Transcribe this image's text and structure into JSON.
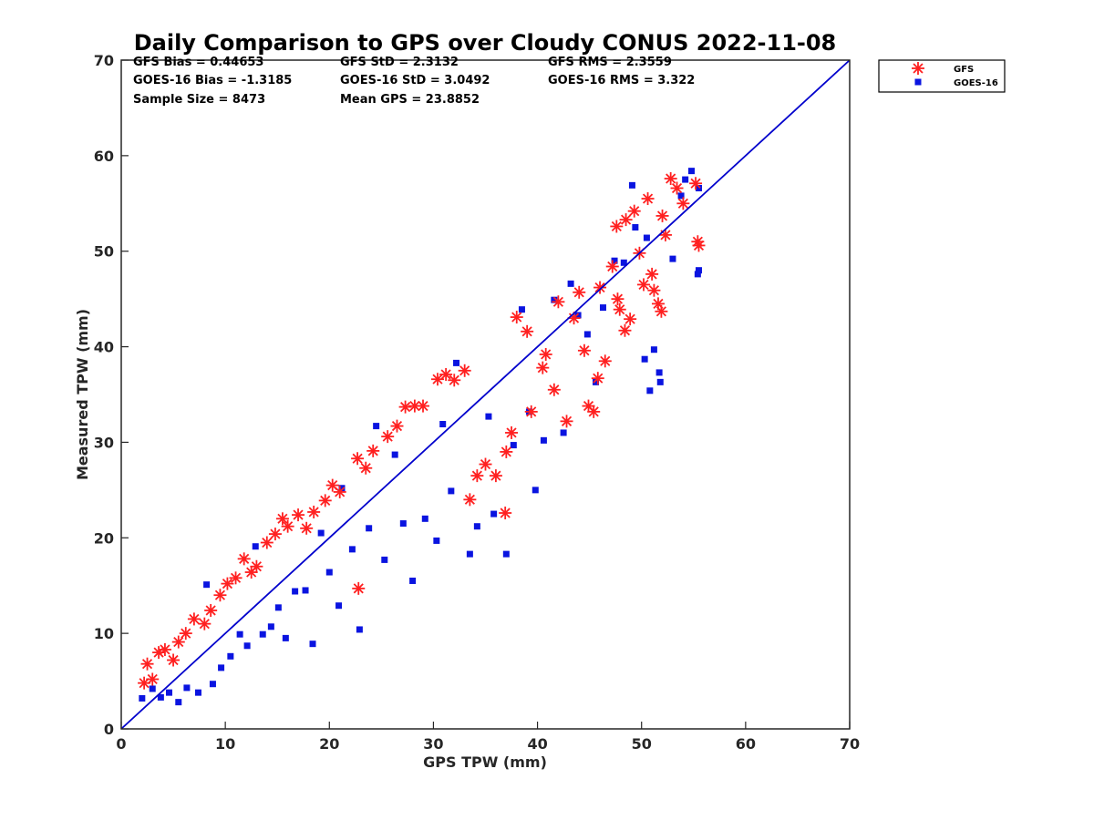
{
  "chart_data": {
    "type": "scatter",
    "title": "Daily Comparison to GPS over Cloudy CONUS 2022-11-08",
    "xlabel": "GPS TPW (mm)",
    "ylabel": "Measured TPW (mm)",
    "xlim": [
      0,
      70
    ],
    "ylim": [
      0,
      70
    ],
    "xticks": [
      "0",
      "10",
      "20",
      "30",
      "40",
      "50",
      "60",
      "70"
    ],
    "yticks": [
      "0",
      "10",
      "20",
      "30",
      "40",
      "50",
      "60",
      "70"
    ],
    "grid": false,
    "legend_position": "outside-top-right",
    "stats": [
      [
        "GFS Bias = 0.44653",
        "GFS StD = 2.3132",
        "GFS RMS = 2.3559"
      ],
      [
        "GOES-16 Bias = -1.3185",
        "GOES-16 StD = 3.0492",
        "GOES-16 RMS = 3.322"
      ],
      [
        "Sample Size = 8473",
        "Mean GPS = 23.8852",
        ""
      ]
    ],
    "reference_line": {
      "x": [
        0,
        70
      ],
      "y": [
        0,
        70
      ],
      "color": "#0000cc"
    },
    "series": [
      {
        "name": "GFS",
        "marker": "asterisk",
        "color": "#ff2020",
        "points": [
          [
            2.2,
            4.8
          ],
          [
            2.5,
            6.8
          ],
          [
            3.0,
            5.2
          ],
          [
            3.6,
            8.0
          ],
          [
            4.2,
            8.3
          ],
          [
            5.0,
            7.2
          ],
          [
            5.5,
            9.1
          ],
          [
            6.2,
            10.0
          ],
          [
            7.0,
            11.5
          ],
          [
            8.0,
            11.0
          ],
          [
            8.6,
            12.4
          ],
          [
            9.5,
            14.0
          ],
          [
            10.2,
            15.2
          ],
          [
            11.0,
            15.8
          ],
          [
            11.8,
            17.8
          ],
          [
            12.5,
            16.4
          ],
          [
            13.0,
            17.0
          ],
          [
            14.0,
            19.5
          ],
          [
            14.8,
            20.4
          ],
          [
            15.5,
            22.0
          ],
          [
            16.0,
            21.2
          ],
          [
            17.0,
            22.4
          ],
          [
            17.8,
            21.0
          ],
          [
            18.5,
            22.7
          ],
          [
            19.6,
            23.9
          ],
          [
            20.3,
            25.5
          ],
          [
            21.0,
            24.8
          ],
          [
            22.7,
            28.3
          ],
          [
            23.5,
            27.3
          ],
          [
            24.2,
            29.1
          ],
          [
            22.8,
            14.7
          ],
          [
            25.6,
            30.6
          ],
          [
            26.5,
            31.7
          ],
          [
            27.3,
            33.7
          ],
          [
            28.2,
            33.8
          ],
          [
            29.0,
            33.8
          ],
          [
            30.4,
            36.6
          ],
          [
            31.2,
            37.1
          ],
          [
            32.0,
            36.5
          ],
          [
            33.0,
            37.5
          ],
          [
            33.5,
            24.0
          ],
          [
            34.2,
            26.5
          ],
          [
            35.0,
            27.7
          ],
          [
            36.0,
            26.5
          ],
          [
            36.9,
            22.6
          ],
          [
            37.0,
            29.0
          ],
          [
            37.5,
            31.0
          ],
          [
            38.0,
            43.1
          ],
          [
            39.0,
            41.6
          ],
          [
            39.4,
            33.2
          ],
          [
            40.5,
            37.8
          ],
          [
            40.8,
            39.2
          ],
          [
            41.6,
            35.5
          ],
          [
            42.0,
            44.7
          ],
          [
            42.8,
            32.2
          ],
          [
            43.5,
            43.0
          ],
          [
            44.0,
            45.7
          ],
          [
            44.5,
            39.6
          ],
          [
            44.9,
            33.8
          ],
          [
            45.4,
            33.2
          ],
          [
            45.8,
            36.7
          ],
          [
            46.0,
            46.2
          ],
          [
            46.5,
            38.5
          ],
          [
            47.2,
            48.4
          ],
          [
            47.7,
            45.0
          ],
          [
            47.9,
            43.9
          ],
          [
            48.4,
            41.7
          ],
          [
            48.9,
            42.9
          ],
          [
            47.6,
            52.6
          ],
          [
            48.5,
            53.3
          ],
          [
            49.3,
            54.2
          ],
          [
            49.8,
            49.8
          ],
          [
            50.2,
            46.5
          ],
          [
            50.6,
            55.5
          ],
          [
            51.0,
            47.6
          ],
          [
            51.2,
            45.9
          ],
          [
            51.6,
            44.5
          ],
          [
            51.9,
            43.7
          ],
          [
            52.3,
            51.7
          ],
          [
            52.8,
            57.6
          ],
          [
            53.4,
            56.6
          ],
          [
            54.0,
            55.0
          ],
          [
            55.2,
            57.1
          ],
          [
            55.4,
            51.0
          ],
          [
            55.5,
            50.6
          ],
          [
            52.0,
            53.7
          ]
        ]
      },
      {
        "name": "GOES-16",
        "marker": "square",
        "color": "#0a14e0",
        "points": [
          [
            2.0,
            3.2
          ],
          [
            3.0,
            4.2
          ],
          [
            3.8,
            3.3
          ],
          [
            4.6,
            3.8
          ],
          [
            5.5,
            2.8
          ],
          [
            6.3,
            4.3
          ],
          [
            7.4,
            3.8
          ],
          [
            8.2,
            15.1
          ],
          [
            8.8,
            4.7
          ],
          [
            9.6,
            6.4
          ],
          [
            10.5,
            7.6
          ],
          [
            11.4,
            9.9
          ],
          [
            12.1,
            8.7
          ],
          [
            12.9,
            19.1
          ],
          [
            13.6,
            9.9
          ],
          [
            14.4,
            10.7
          ],
          [
            15.1,
            12.7
          ],
          [
            15.8,
            9.5
          ],
          [
            16.7,
            14.4
          ],
          [
            17.7,
            14.5
          ],
          [
            18.4,
            8.9
          ],
          [
            19.2,
            20.5
          ],
          [
            20.0,
            16.4
          ],
          [
            20.9,
            12.9
          ],
          [
            21.2,
            25.2
          ],
          [
            22.2,
            18.8
          ],
          [
            22.9,
            10.4
          ],
          [
            23.8,
            21.0
          ],
          [
            24.5,
            31.7
          ],
          [
            25.3,
            17.7
          ],
          [
            26.3,
            28.7
          ],
          [
            27.1,
            21.5
          ],
          [
            28.0,
            15.5
          ],
          [
            29.2,
            22.0
          ],
          [
            30.3,
            19.7
          ],
          [
            30.9,
            31.9
          ],
          [
            31.7,
            24.9
          ],
          [
            32.2,
            38.3
          ],
          [
            33.5,
            18.3
          ],
          [
            34.2,
            21.2
          ],
          [
            35.3,
            32.7
          ],
          [
            35.8,
            22.5
          ],
          [
            37.0,
            18.3
          ],
          [
            37.7,
            29.7
          ],
          [
            38.5,
            43.9
          ],
          [
            39.2,
            33.2
          ],
          [
            39.8,
            25.0
          ],
          [
            40.6,
            30.2
          ],
          [
            41.6,
            44.9
          ],
          [
            42.5,
            31.0
          ],
          [
            43.2,
            46.6
          ],
          [
            43.9,
            43.3
          ],
          [
            44.8,
            41.3
          ],
          [
            45.6,
            36.3
          ],
          [
            46.3,
            44.1
          ],
          [
            47.4,
            49.0
          ],
          [
            48.3,
            48.8
          ],
          [
            49.1,
            56.9
          ],
          [
            50.3,
            38.7
          ],
          [
            50.8,
            35.4
          ],
          [
            51.2,
            39.7
          ],
          [
            51.8,
            36.3
          ],
          [
            51.7,
            37.3
          ],
          [
            53.0,
            49.2
          ],
          [
            53.8,
            55.8
          ],
          [
            54.2,
            57.5
          ],
          [
            54.8,
            58.4
          ],
          [
            55.5,
            56.6
          ],
          [
            55.4,
            47.6
          ],
          [
            55.5,
            48.0
          ],
          [
            49.4,
            52.5
          ],
          [
            50.5,
            51.4
          ]
        ]
      }
    ]
  }
}
